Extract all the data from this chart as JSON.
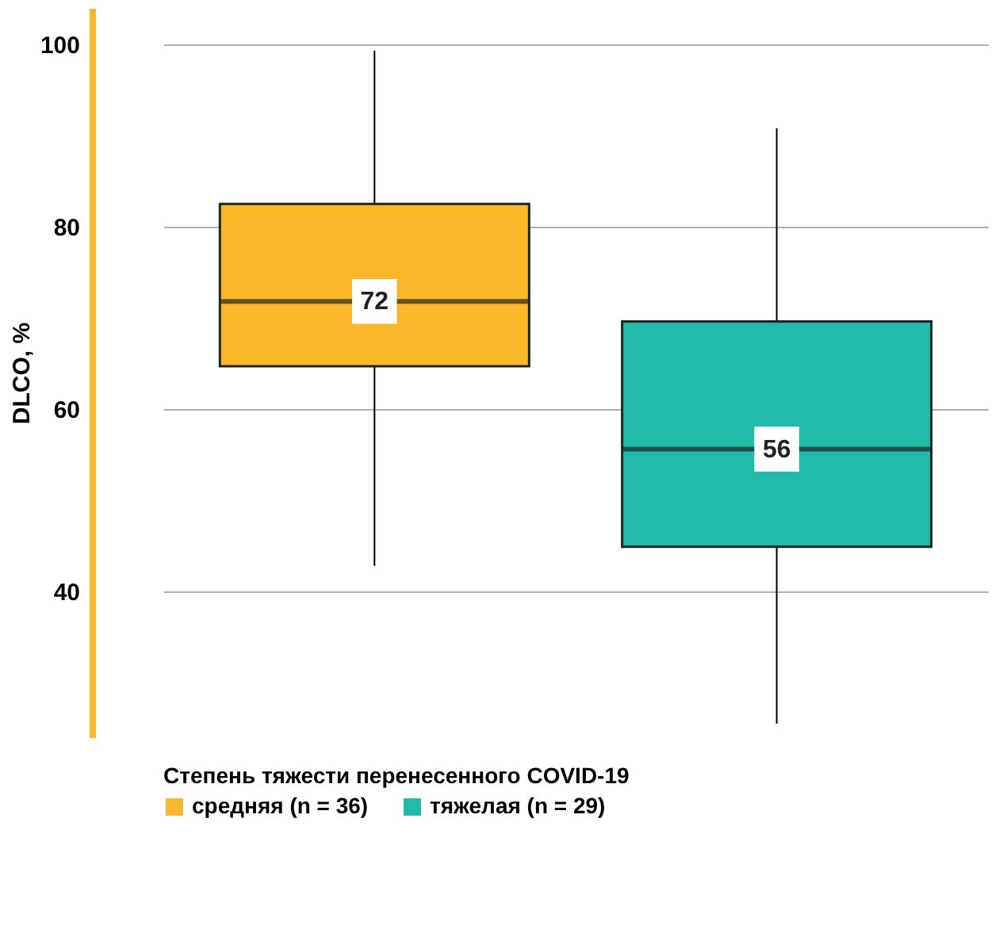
{
  "chart_data": {
    "type": "box",
    "ylabel": "DLCO, %",
    "legend_title": "Степень тяжести перенесенного COVID-19",
    "legend": "bottom",
    "grid": "y",
    "tick_labels": "y",
    "categories": [
      null,
      null
    ],
    "ylim": [
      24,
      104
    ],
    "yticks": [
      40,
      60,
      80,
      100
    ],
    "series": [
      {
        "name": "средняя (n = 36)",
        "color": "#fbb829",
        "boxes": [
          {
            "low": 42.8,
            "q1": 64.7,
            "median": 71.8,
            "q3": 82.5,
            "high": 99.3
          },
          null
        ],
        "value_labels": [
          "72",
          null
        ]
      },
      {
        "name": "тяжелая (n = 29)",
        "color": "#22bbaa",
        "boxes": [
          null,
          {
            "low": 25.5,
            "q1": 44.9,
            "median": 55.6,
            "q3": 69.6,
            "high": 90.8
          }
        ],
        "value_labels": [
          null,
          "56"
        ]
      }
    ]
  }
}
